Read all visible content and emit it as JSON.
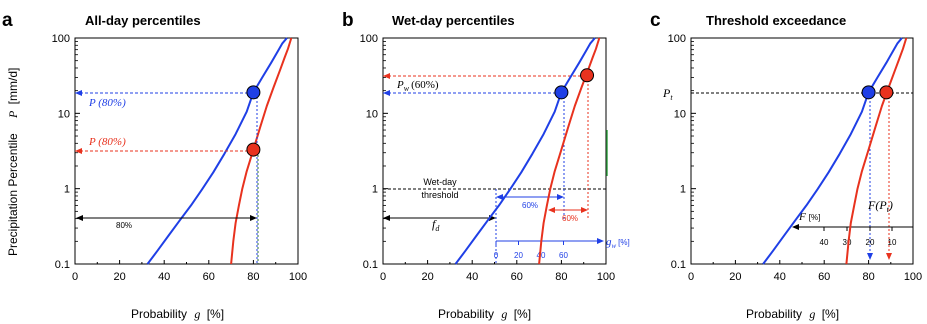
{
  "figure": {
    "ylabel_left": "Precipitation Percentile",
    "ylabel_units": "[mm/d]",
    "ylabel_symbol": "P",
    "xlabel_text": "Probability",
    "xlabel_symbol": "g",
    "xlabel_units": "[%]"
  },
  "colors": {
    "blue": "#1f3fe6",
    "red": "#e8321e",
    "black": "#000000",
    "green": "#2e9e3e"
  },
  "chart_data": [
    {
      "type": "line",
      "panel_letter": "a",
      "title": "All-day percentiles",
      "xlim": [
        0,
        100
      ],
      "ylim": [
        0.1,
        100
      ],
      "yscale": "log",
      "x_ticks": [
        "0",
        "20",
        "40",
        "60",
        "80",
        "100"
      ],
      "y_ticks": [
        "0.1",
        "1",
        "10",
        "100"
      ],
      "series": [
        {
          "color": "blue",
          "x": [
            32.5,
            37,
            42,
            47,
            52,
            57,
            62,
            67,
            72,
            77,
            80,
            84,
            88,
            91,
            93,
            95
          ],
          "y": [
            0.1,
            0.15,
            0.24,
            0.38,
            0.6,
            0.98,
            1.65,
            2.9,
            5.3,
            10.5,
            19,
            30,
            47,
            67,
            85,
            100
          ]
        },
        {
          "color": "red",
          "x": [
            70,
            71,
            72,
            73.5,
            75,
            77,
            80,
            83,
            86,
            89,
            92,
            94,
            95.5,
            97
          ],
          "y": [
            0.1,
            0.2,
            0.35,
            0.6,
            1.0,
            1.7,
            3.3,
            6.5,
            12.5,
            22,
            38,
            55,
            72,
            100
          ]
        }
      ],
      "annotations": {
        "p80_blue": "P (80%)",
        "p80_red": "P (80%)",
        "span_label": "80%"
      },
      "points": [
        {
          "color": "blue",
          "x": 80,
          "y": 19
        },
        {
          "color": "red",
          "x": 80,
          "y": 3.3
        }
      ]
    },
    {
      "type": "line",
      "panel_letter": "b",
      "title": "Wet-day percentiles",
      "xlim": [
        0,
        100
      ],
      "ylim": [
        0.1,
        100
      ],
      "yscale": "log",
      "x_ticks": [
        "0",
        "20",
        "40",
        "60",
        "80",
        "100"
      ],
      "y_ticks": [
        "0.1",
        "1",
        "10",
        "100"
      ],
      "series": [
        {
          "color": "blue",
          "x": [
            32.5,
            37,
            42,
            47,
            52,
            57,
            62,
            67,
            72,
            77,
            80,
            84,
            88,
            91,
            93,
            95
          ],
          "y": [
            0.1,
            0.15,
            0.24,
            0.38,
            0.6,
            0.98,
            1.65,
            2.9,
            5.3,
            10.5,
            19,
            30,
            47,
            67,
            85,
            100
          ]
        },
        {
          "color": "red",
          "x": [
            70,
            71,
            72,
            73.5,
            75,
            77,
            80,
            83,
            86,
            89,
            92,
            94,
            95.5,
            97
          ],
          "y": [
            0.1,
            0.2,
            0.35,
            0.6,
            1.0,
            1.7,
            3.3,
            6.5,
            12.5,
            22,
            38,
            55,
            72,
            100
          ]
        }
      ],
      "annotations": {
        "pw_label": "P",
        "pw_sub": "w",
        "pw_pct": "(60%)",
        "threshold_line1": "Wet-day",
        "threshold_line2": "threshold",
        "fd_label": "f",
        "fd_sub": "d",
        "blue_span": "60%",
        "red_span": "60%",
        "gw_label": "g",
        "gw_sub": "w",
        "gw_units": "[%]",
        "gw_ticks": [
          "0",
          "20",
          "40",
          "60"
        ]
      },
      "points": [
        {
          "color": "blue",
          "x": 80,
          "y": 19
        },
        {
          "color": "red",
          "x": 91.5,
          "y": 32
        }
      ]
    },
    {
      "type": "line",
      "panel_letter": "c",
      "title": "Threshold exceedance",
      "xlim": [
        0,
        100
      ],
      "ylim": [
        0.1,
        100
      ],
      "yscale": "log",
      "x_ticks": [
        "0",
        "20",
        "40",
        "60",
        "80",
        "100"
      ],
      "y_ticks": [
        "0.1",
        "1",
        "10",
        "100"
      ],
      "series": [
        {
          "color": "blue",
          "x": [
            32.5,
            37,
            42,
            47,
            52,
            57,
            62,
            67,
            72,
            77,
            80,
            84,
            88,
            91,
            93,
            95
          ],
          "y": [
            0.1,
            0.15,
            0.24,
            0.38,
            0.6,
            0.98,
            1.65,
            2.9,
            5.3,
            10.5,
            19,
            30,
            47,
            67,
            85,
            100
          ]
        },
        {
          "color": "red",
          "x": [
            70,
            71,
            72,
            73.5,
            75,
            77,
            80,
            83,
            86,
            89,
            92,
            94,
            95.5,
            97
          ],
          "y": [
            0.1,
            0.2,
            0.35,
            0.6,
            1.0,
            1.7,
            3.3,
            6.5,
            12.5,
            22,
            38,
            55,
            72,
            100
          ]
        }
      ],
      "annotations": {
        "pt_label": "P",
        "pt_sub": "t",
        "fpt_label": "F(P",
        "fpt_sub": "t",
        "fpt_close": ")",
        "f_label": "F",
        "f_units": "[%]",
        "f_ticks": [
          "40",
          "30",
          "20",
          "10"
        ]
      },
      "points": [
        {
          "color": "blue",
          "x": 80,
          "y": 19
        },
        {
          "color": "red",
          "x": 88,
          "y": 19
        }
      ]
    }
  ]
}
